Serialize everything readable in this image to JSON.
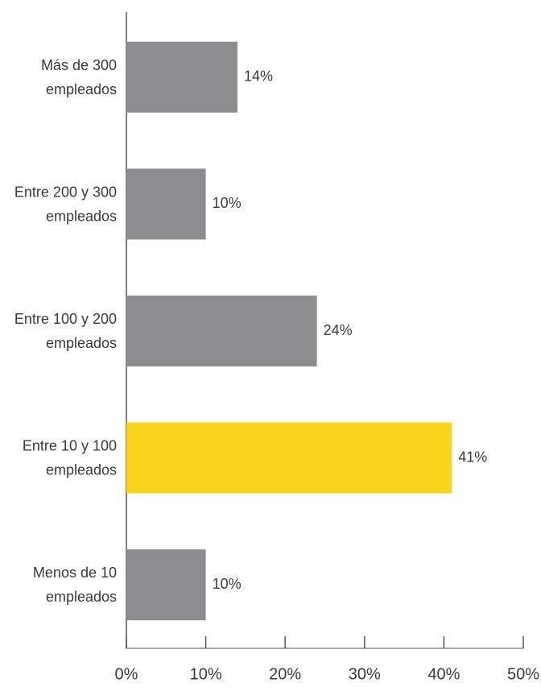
{
  "chart_data": {
    "type": "bar",
    "orientation": "horizontal",
    "categories": [
      "Más de 300 empleados",
      "Entre 200 y 300 empleados",
      "Entre 100 y 200 empleados",
      "Entre 10 y 100 empleados",
      "Menos de 10 empleados"
    ],
    "values": [
      14,
      10,
      24,
      41,
      10
    ],
    "value_labels": [
      "14%",
      "10%",
      "24%",
      "41%",
      "10%"
    ],
    "colors": [
      "#8d8d8f",
      "#8d8d8f",
      "#8d8d8f",
      "#f8d31c",
      "#8d8d8f"
    ],
    "xlim": [
      0,
      50
    ],
    "xticks": [
      {
        "value": 0,
        "label": "0%"
      },
      {
        "value": 10,
        "label": "10%"
      },
      {
        "value": 20,
        "label": "20%"
      },
      {
        "value": 30,
        "label": "30%"
      },
      {
        "value": 40,
        "label": "40%"
      },
      {
        "value": 50,
        "label": "50%"
      }
    ]
  }
}
